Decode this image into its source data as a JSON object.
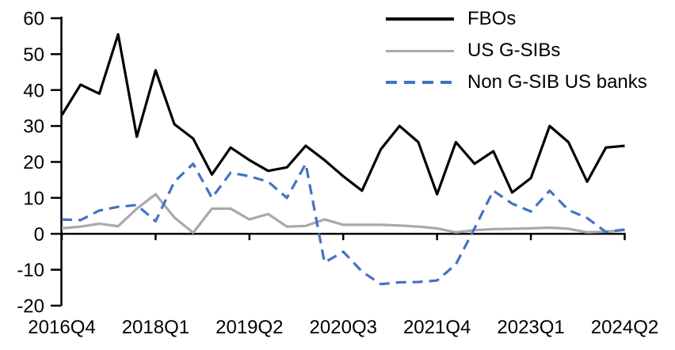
{
  "chart_data": {
    "type": "line",
    "title": "",
    "xlabel": "",
    "ylabel": "",
    "grid": "off",
    "legend_position": "top-right",
    "x_tick_labels": [
      "2016Q4",
      "2018Q1",
      "2019Q2",
      "2020Q3",
      "2021Q4",
      "2023Q1",
      "2024Q2"
    ],
    "x_tick_indices": [
      0,
      5,
      10,
      15,
      20,
      25,
      30
    ],
    "quarters": [
      "2016Q4",
      "2017Q1",
      "2017Q2",
      "2017Q3",
      "2017Q4",
      "2018Q1",
      "2018Q2",
      "2018Q3",
      "2018Q4",
      "2019Q1",
      "2019Q2",
      "2019Q3",
      "2019Q4",
      "2020Q1",
      "2020Q2",
      "2020Q3",
      "2020Q4",
      "2021Q1",
      "2021Q2",
      "2021Q3",
      "2021Q4",
      "2022Q1",
      "2022Q2",
      "2022Q3",
      "2022Q4",
      "2023Q1",
      "2023Q2",
      "2023Q3",
      "2023Q4",
      "2024Q1",
      "2024Q2"
    ],
    "y_axis": {
      "min": -20,
      "max": 60,
      "tick_step": 10,
      "tick_labels": [
        "60",
        "50",
        "40",
        "30",
        "20",
        "10",
        "0",
        "-10",
        "-20"
      ]
    },
    "series": [
      {
        "name": "FBOs",
        "color": "#000000",
        "line_style": "solid",
        "values": [
          33,
          41.5,
          39,
          55.5,
          27,
          45.5,
          30.5,
          26.5,
          16.5,
          24,
          20.5,
          17.5,
          18.5,
          24.5,
          20.5,
          16,
          12,
          23.5,
          30,
          25.5,
          11,
          25.5,
          19.5,
          23,
          11.5,
          15.5,
          30,
          25.5,
          14.5,
          24,
          24.5
        ]
      },
      {
        "name": "US G-SIBs",
        "color": "#A9A9A9",
        "line_style": "solid",
        "values": [
          1.5,
          2,
          2.8,
          2.1,
          7,
          11,
          4.5,
          0.3,
          7,
          7,
          4,
          5.5,
          2,
          2.2,
          4,
          2.5,
          2.5,
          2.5,
          2.3,
          2,
          1.5,
          0.4,
          1,
          1.3,
          1.4,
          1.5,
          1.7,
          1.4,
          0.4,
          0.6,
          1
        ]
      },
      {
        "name": "Non G-SIB US banks",
        "color": "#4472C4",
        "line_style": "dashed",
        "values": [
          4,
          3.8,
          6.5,
          7.5,
          8,
          3.5,
          14.5,
          19.5,
          10,
          17,
          16,
          14.5,
          10,
          19.5,
          -8,
          -5,
          -10.5,
          -14,
          -13.5,
          -13.4,
          -13,
          -8.5,
          1.5,
          12,
          8.4,
          6.2,
          12,
          6.6,
          4.4,
          0.5,
          1.2
        ]
      }
    ]
  }
}
